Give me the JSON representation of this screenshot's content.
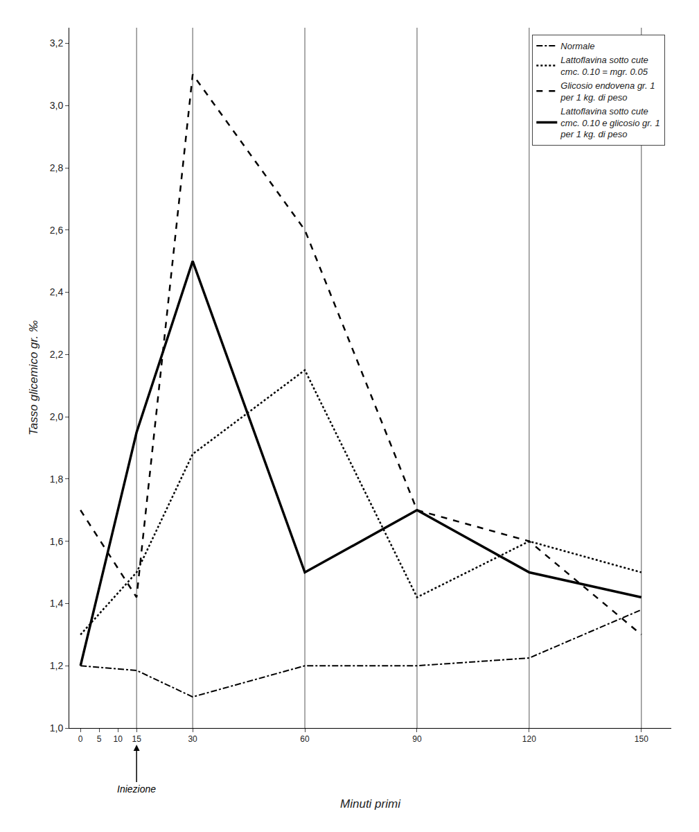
{
  "chart_data": {
    "type": "line",
    "xlabel": "Minuti primi",
    "ylabel": "Tasso glicemico gr. ‰",
    "x": [
      0,
      15,
      30,
      60,
      90,
      120,
      150
    ],
    "series": [
      {
        "name": "Normale",
        "color": "#000000",
        "line_style": "dashdot",
        "values": [
          1.2,
          1.185,
          1.1,
          1.2,
          1.2,
          1.225,
          1.38
        ]
      },
      {
        "name": "Lattoflavina sotto cute\ncmc. 0.10 = mgr. 0.05",
        "color": "#000000",
        "line_style": "dotted",
        "values": [
          1.3,
          1.5,
          1.88,
          2.15,
          1.42,
          1.6,
          1.5
        ]
      },
      {
        "name": "Glicosio endovena gr. 1\nper 1 kg. di peso",
        "color": "#000000",
        "line_style": "dashed",
        "values": [
          1.7,
          1.42,
          3.1,
          2.6,
          1.7,
          1.6,
          1.3
        ]
      },
      {
        "name": "Lattoflavina sotto cute\ncmc. 0.10 e glicosio gr. 1\nper 1 kg. di peso",
        "color": "#000000",
        "line_style": "solid",
        "values": [
          1.2,
          1.95,
          2.5,
          1.5,
          1.7,
          1.5,
          1.42
        ]
      }
    ],
    "xlim": [
      -3,
      158
    ],
    "xticks": [
      0,
      5,
      10,
      15,
      30,
      60,
      90,
      120,
      150
    ],
    "ylim": [
      1.0,
      3.25
    ],
    "yticks": [
      {
        "value": 1.0,
        "label": "1,0"
      },
      {
        "value": 1.2,
        "label": "1,2"
      },
      {
        "value": 1.4,
        "label": "1,4"
      },
      {
        "value": 1.6,
        "label": "1,6"
      },
      {
        "value": 1.8,
        "label": "1,8"
      },
      {
        "value": 2.0,
        "label": "2,0"
      },
      {
        "value": 2.2,
        "label": "2,2"
      },
      {
        "value": 2.4,
        "label": "2,4"
      },
      {
        "value": 2.6,
        "label": "2,6"
      },
      {
        "value": 2.8,
        "label": "2,8"
      },
      {
        "value": 3.0,
        "label": "3,0"
      },
      {
        "value": 3.2,
        "label": "3,2"
      }
    ],
    "vlines": [
      15,
      30,
      60,
      90,
      120,
      150
    ],
    "annotations": [
      {
        "text": "Iniezione",
        "x": 15
      }
    ],
    "legend": "upper right",
    "grid": false
  }
}
